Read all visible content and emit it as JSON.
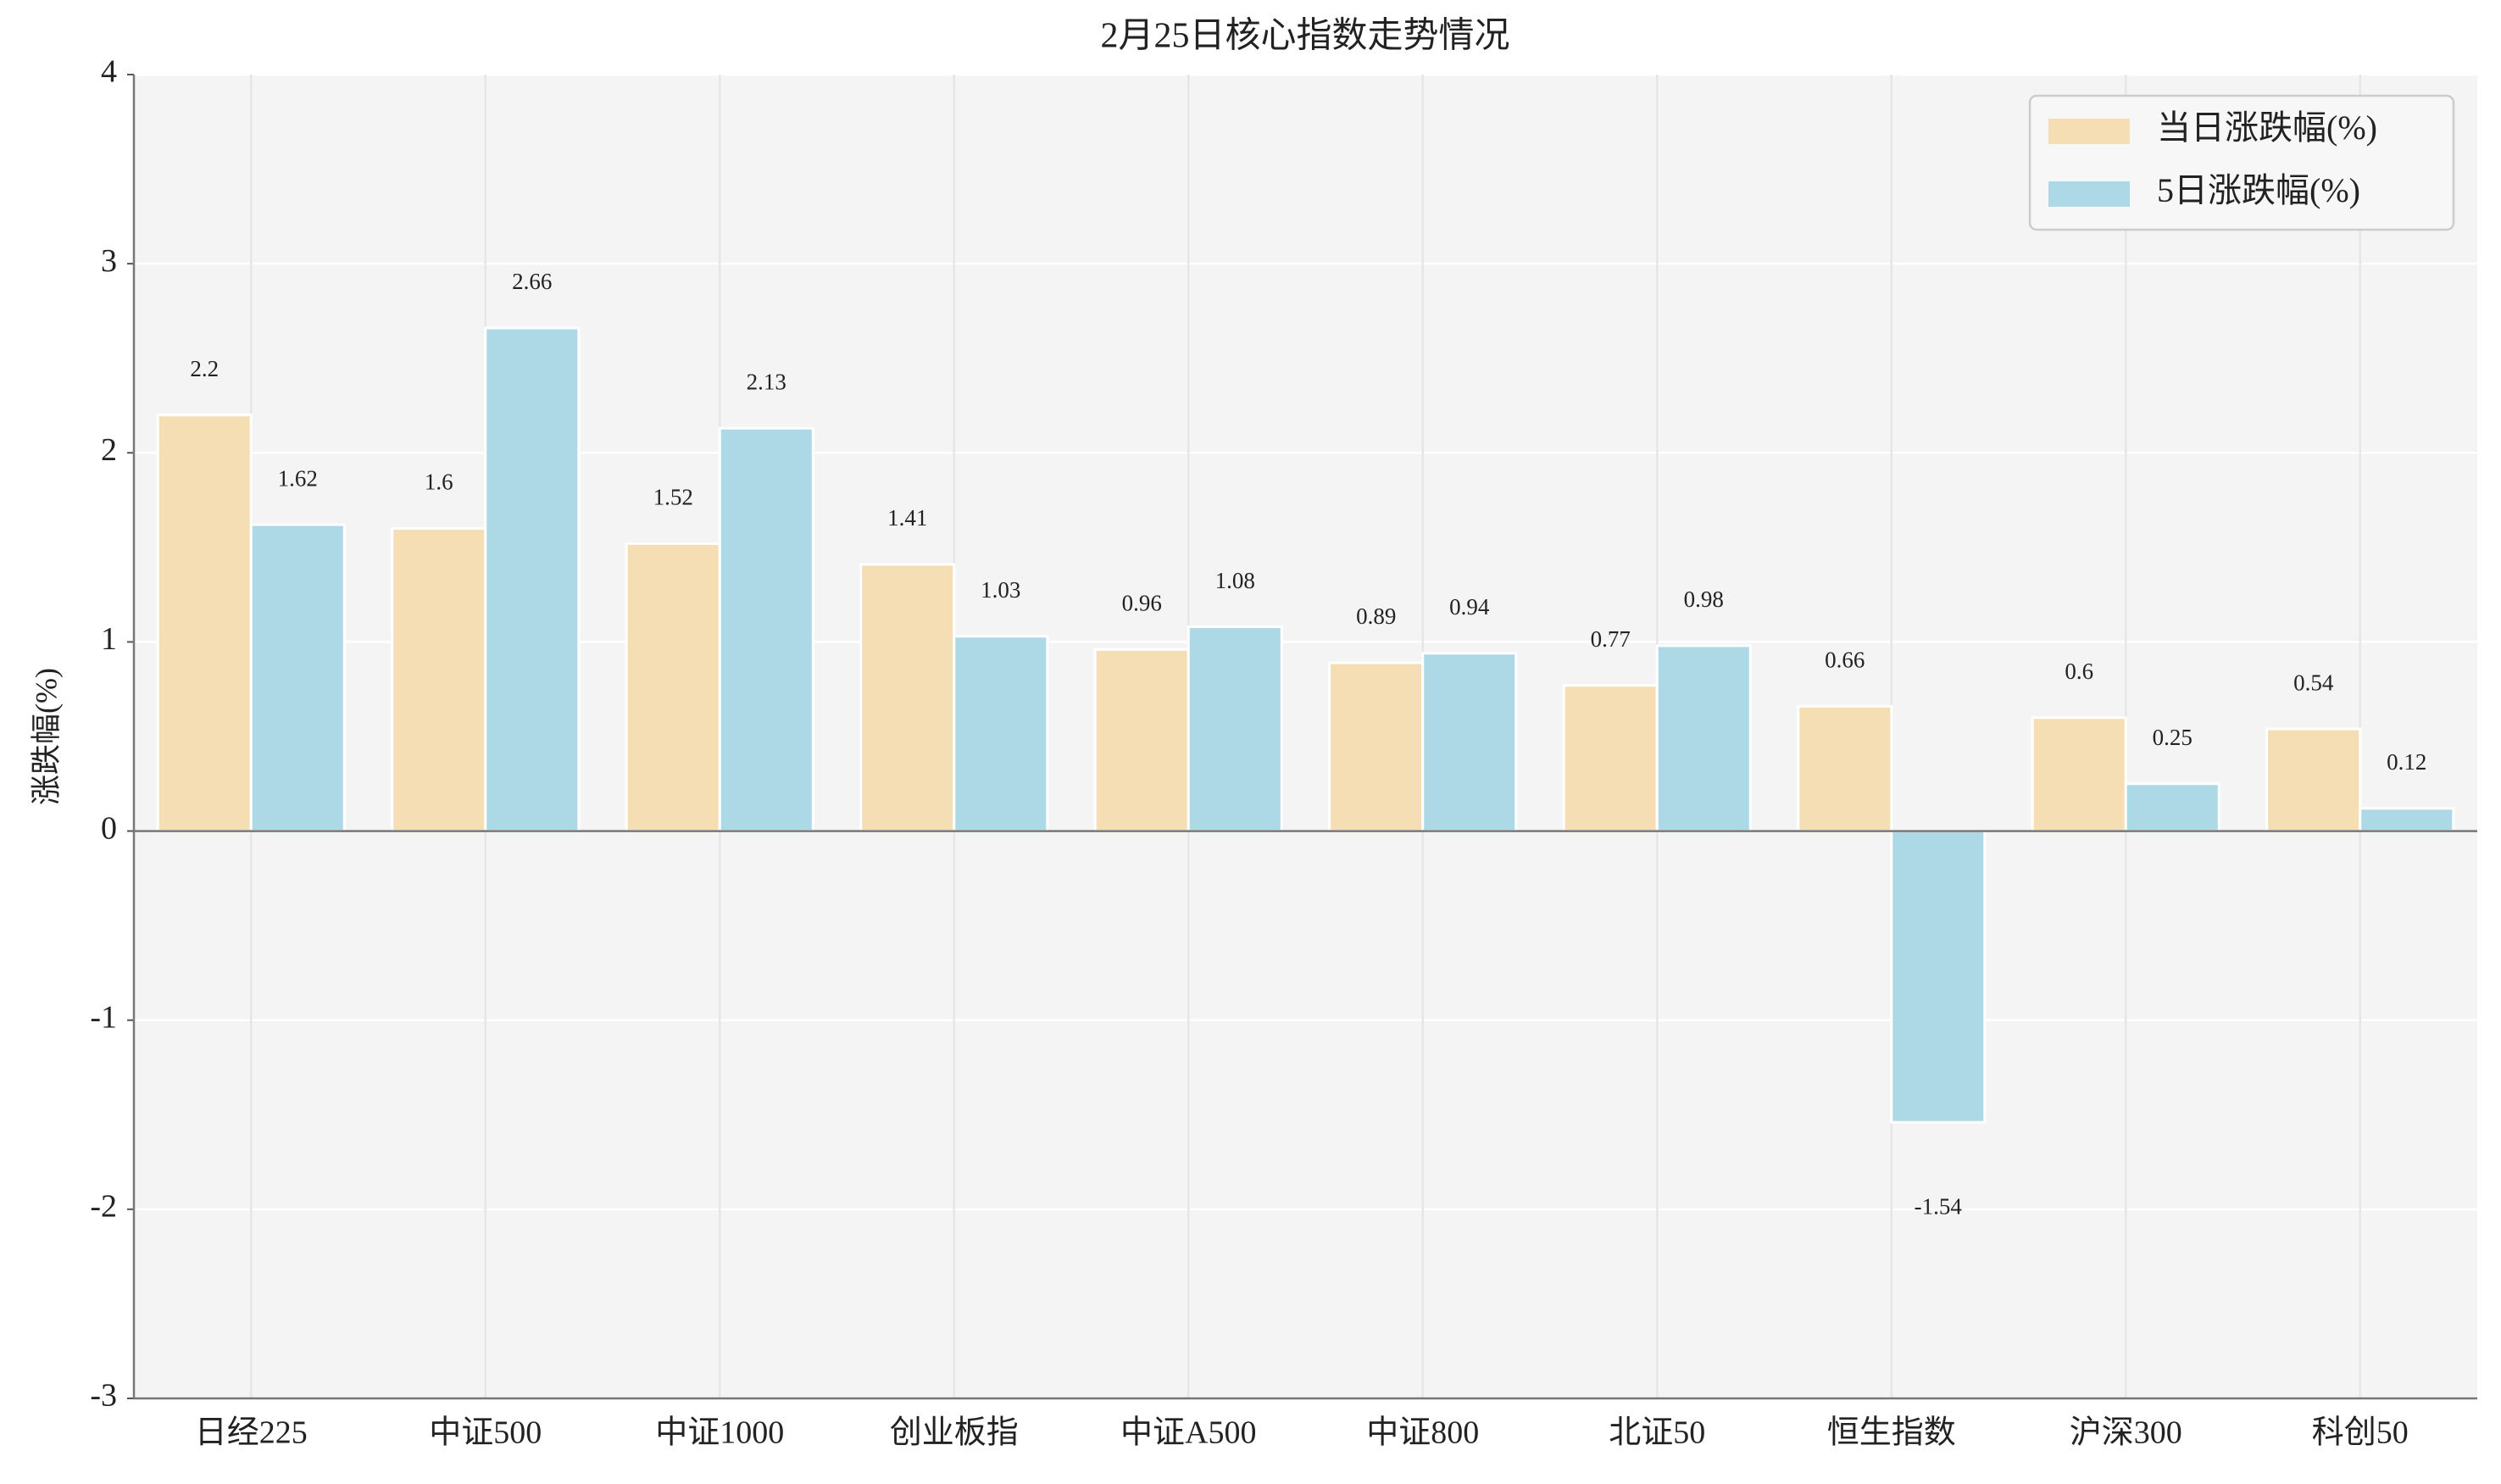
{
  "chart_data": {
    "type": "bar",
    "title": "2月25日核心指数走势情况",
    "y_label": "涨跌幅(%)",
    "categories": [
      "日经225",
      "中证500",
      "中证1000",
      "创业板指",
      "中证A500",
      "中证800",
      "北证50",
      "恒生指数",
      "沪深300",
      "科创50"
    ],
    "series": [
      {
        "name": "当日涨跌幅(%)",
        "color": "#f5deb3",
        "values": [
          2.2,
          1.6,
          1.52,
          1.41,
          0.96,
          0.89,
          0.77,
          0.66,
          0.6,
          0.54
        ]
      },
      {
        "name": "5日涨跌幅(%)",
        "color": "#add8e6",
        "values": [
          1.62,
          2.66,
          2.13,
          1.03,
          1.08,
          0.94,
          0.98,
          -1.54,
          0.25,
          0.12
        ]
      }
    ],
    "ylim": [
      -3,
      4
    ],
    "yticks": [
      -3,
      -2,
      -1,
      0,
      1,
      2,
      3,
      4
    ],
    "grid": true,
    "legend": "upper right"
  }
}
